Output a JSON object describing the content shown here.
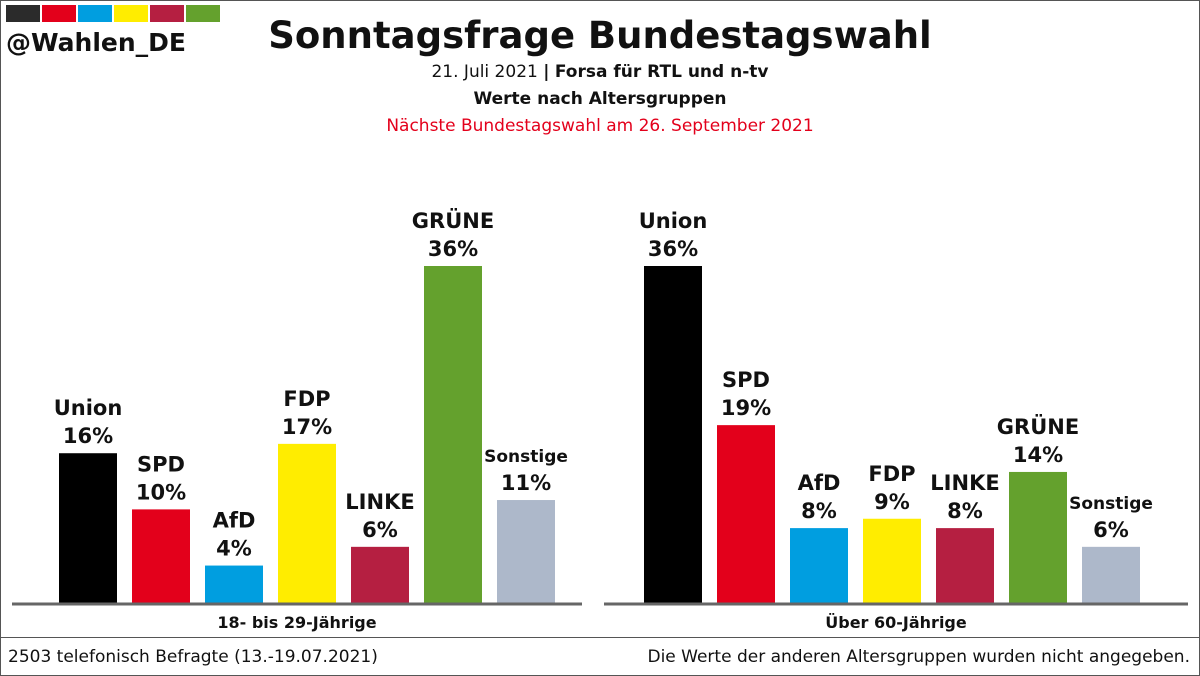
{
  "header": {
    "handle": "@Wahlen_DE",
    "title": "Sonntagsfrage Bundestagswahl",
    "date": "21. Juli 2021",
    "separator": "|",
    "institute": "Forsa für RTL und n-tv",
    "subtitle": "Werte nach Altersgruppen",
    "note": "Nächste Bundestagswahl am 26. September 2021",
    "note_color": "#e3001b"
  },
  "brand_colors": [
    "#2b2b2b",
    "#e3001b",
    "#009ee0",
    "#ffed00",
    "#b51f41",
    "#64a12d"
  ],
  "chart_data": {
    "type": "bar",
    "ylim": [
      0,
      36
    ],
    "value_suffix": "%",
    "groups": [
      {
        "label": "18- bis 29-Jährige",
        "bars": [
          {
            "party": "Union",
            "value": 16,
            "color": "#000000"
          },
          {
            "party": "SPD",
            "value": 10,
            "color": "#e3001b"
          },
          {
            "party": "AfD",
            "value": 4,
            "color": "#009ee0"
          },
          {
            "party": "FDP",
            "value": 17,
            "color": "#ffed00"
          },
          {
            "party": "LINKE",
            "value": 6,
            "color": "#b51f41"
          },
          {
            "party": "GRÜNE",
            "value": 36,
            "color": "#64a12d"
          },
          {
            "party": "Sonstige",
            "value": 11,
            "color": "#adb8ca"
          }
        ]
      },
      {
        "label": "Über 60-Jährige",
        "bars": [
          {
            "party": "Union",
            "value": 36,
            "color": "#000000"
          },
          {
            "party": "SPD",
            "value": 19,
            "color": "#e3001b"
          },
          {
            "party": "AfD",
            "value": 8,
            "color": "#009ee0"
          },
          {
            "party": "FDP",
            "value": 9,
            "color": "#ffed00"
          },
          {
            "party": "LINKE",
            "value": 8,
            "color": "#b51f41"
          },
          {
            "party": "GRÜNE",
            "value": 14,
            "color": "#64a12d"
          },
          {
            "party": "Sonstige",
            "value": 6,
            "color": "#adb8ca"
          }
        ]
      }
    ]
  },
  "footer": {
    "left": "2503 telefonisch Befragte (13.-19.07.2021)",
    "right": "Die Werte der anderen Altersgruppen wurden nicht angegeben."
  }
}
